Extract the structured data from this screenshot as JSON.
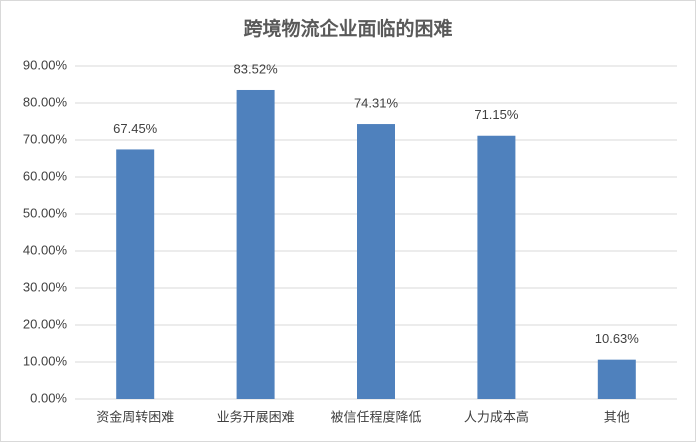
{
  "chart_data": {
    "type": "bar",
    "title": "跨境物流企业面临的困难",
    "categories": [
      "资金周转困难",
      "业务开展困难",
      "被信任程度降低",
      "人力成本高",
      "其他"
    ],
    "values": [
      67.45,
      83.52,
      74.31,
      71.15,
      10.63
    ],
    "value_labels": [
      "67.45%",
      "83.52%",
      "74.31%",
      "71.15%",
      "10.63%"
    ],
    "color": "#4f81bd",
    "ylim": [
      0,
      90
    ],
    "yticks": [
      {
        "value": 0,
        "label": "0.00%"
      },
      {
        "value": 10,
        "label": "10.00%"
      },
      {
        "value": 20,
        "label": "20.00%"
      },
      {
        "value": 30,
        "label": "30.00%"
      },
      {
        "value": 40,
        "label": "40.00%"
      },
      {
        "value": 50,
        "label": "50.00%"
      },
      {
        "value": 60,
        "label": "60.00%"
      },
      {
        "value": 70,
        "label": "70.00%"
      },
      {
        "value": 80,
        "label": "80.00%"
      },
      {
        "value": 90,
        "label": "90.00%"
      }
    ],
    "grid": true
  }
}
